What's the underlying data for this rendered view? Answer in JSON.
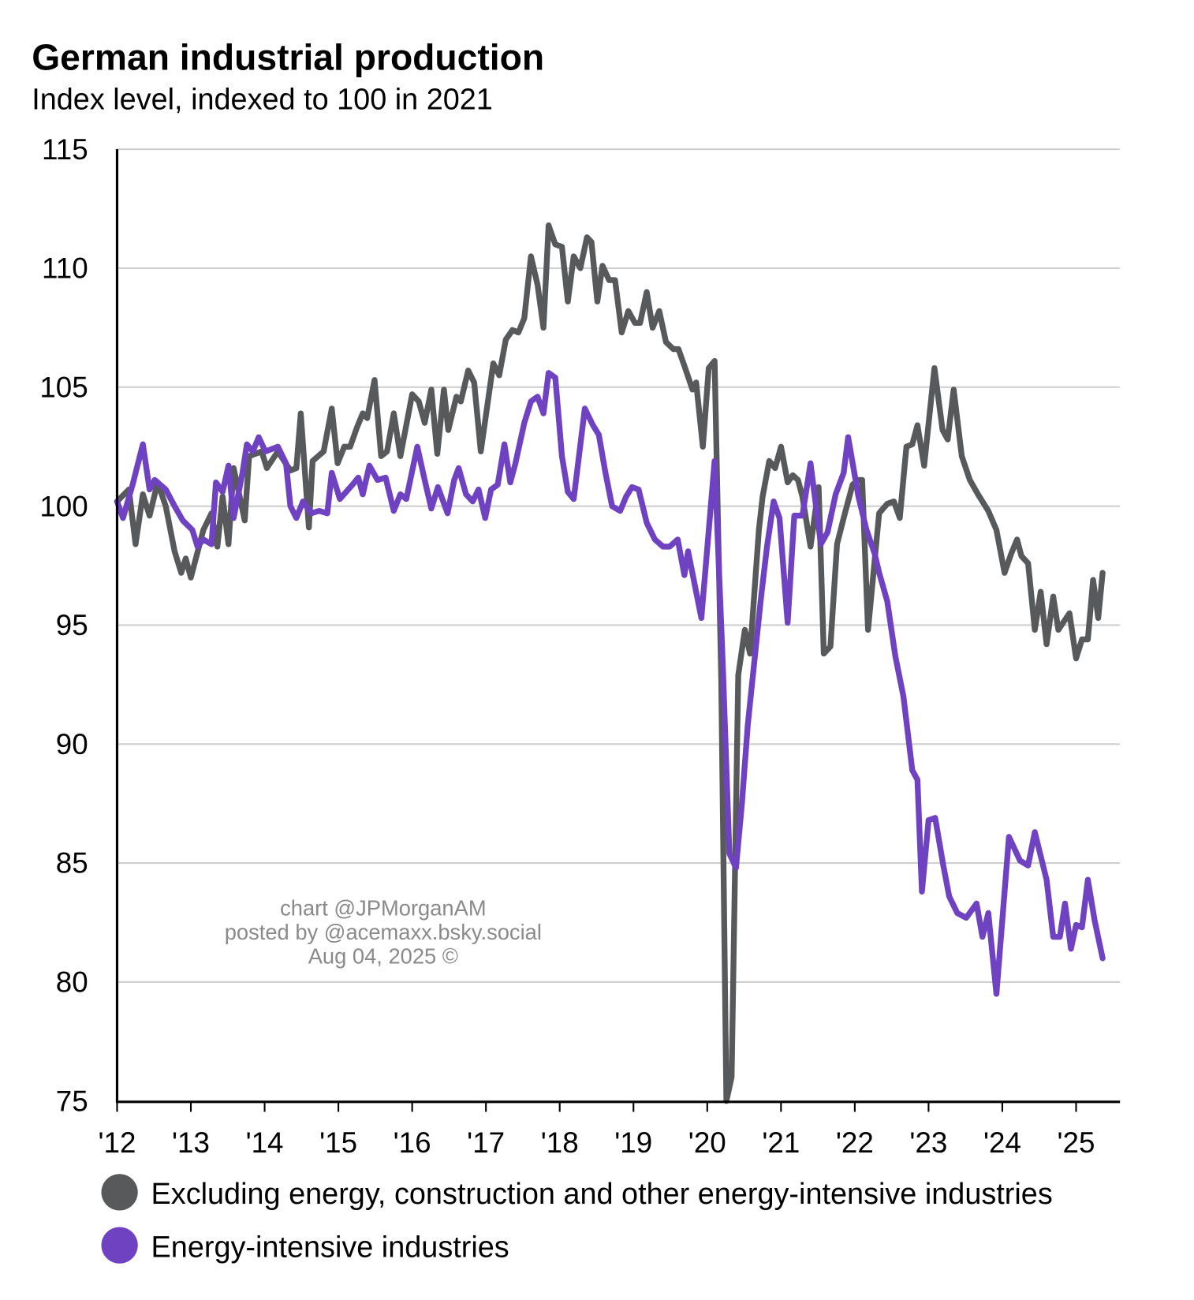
{
  "chart_data": {
    "type": "line",
    "title": "German industrial production",
    "subtitle": "Index level, indexed to 100 in 2021",
    "xlabel": "",
    "ylabel": "",
    "ylim": [
      75,
      115
    ],
    "xlim": [
      2012,
      2025.6
    ],
    "yticks": [
      75,
      80,
      85,
      90,
      95,
      100,
      105,
      110,
      115
    ],
    "xticks": [
      2012,
      2013,
      2014,
      2015,
      2016,
      2017,
      2018,
      2019,
      2020,
      2021,
      2022,
      2023,
      2024,
      2025
    ],
    "xtick_labels": [
      "'12",
      "'13",
      "'14",
      "'15",
      "'16",
      "'17",
      "'18",
      "'19",
      "'20",
      "'21",
      "'22",
      "'23",
      "'24",
      "'25"
    ],
    "grid": true,
    "legend_position": "bottom",
    "series": [
      {
        "name": "Excluding energy, construction and other energy-intensive industries",
        "color": "#58595b",
        "points": [
          [
            2012.0,
            100.2
          ],
          [
            2012.16,
            100.7
          ],
          [
            2012.25,
            98.4
          ],
          [
            2012.35,
            100.5
          ],
          [
            2012.44,
            99.6
          ],
          [
            2012.55,
            101.0
          ],
          [
            2012.66,
            100.0
          ],
          [
            2012.78,
            98.1
          ],
          [
            2012.87,
            97.2
          ],
          [
            2012.93,
            97.8
          ],
          [
            2013.0,
            97.0
          ],
          [
            2013.17,
            99.0
          ],
          [
            2013.28,
            99.7
          ],
          [
            2013.36,
            98.3
          ],
          [
            2013.43,
            100.4
          ],
          [
            2013.51,
            98.4
          ],
          [
            2013.58,
            101.6
          ],
          [
            2013.73,
            99.4
          ],
          [
            2013.79,
            102.1
          ],
          [
            2013.96,
            102.3
          ],
          [
            2014.03,
            101.6
          ],
          [
            2014.18,
            102.3
          ],
          [
            2014.35,
            101.5
          ],
          [
            2014.43,
            101.6
          ],
          [
            2014.49,
            103.9
          ],
          [
            2014.6,
            99.1
          ],
          [
            2014.65,
            101.9
          ],
          [
            2014.8,
            102.3
          ],
          [
            2014.91,
            104.1
          ],
          [
            2014.99,
            101.8
          ],
          [
            2015.08,
            102.5
          ],
          [
            2015.16,
            102.5
          ],
          [
            2015.25,
            103.3
          ],
          [
            2015.33,
            103.9
          ],
          [
            2015.39,
            103.7
          ],
          [
            2015.49,
            105.3
          ],
          [
            2015.58,
            102.1
          ],
          [
            2015.66,
            102.3
          ],
          [
            2015.75,
            103.9
          ],
          [
            2015.84,
            102.1
          ],
          [
            2016.0,
            104.7
          ],
          [
            2016.09,
            104.4
          ],
          [
            2016.17,
            103.5
          ],
          [
            2016.26,
            104.9
          ],
          [
            2016.34,
            102.2
          ],
          [
            2016.43,
            104.9
          ],
          [
            2016.49,
            103.2
          ],
          [
            2016.6,
            104.6
          ],
          [
            2016.66,
            104.4
          ],
          [
            2016.76,
            105.7
          ],
          [
            2016.84,
            105.2
          ],
          [
            2016.93,
            102.3
          ],
          [
            2017.1,
            106.0
          ],
          [
            2017.18,
            105.5
          ],
          [
            2017.27,
            107.0
          ],
          [
            2017.36,
            107.4
          ],
          [
            2017.44,
            107.3
          ],
          [
            2017.52,
            107.9
          ],
          [
            2017.61,
            110.5
          ],
          [
            2017.7,
            109.3
          ],
          [
            2017.78,
            107.5
          ],
          [
            2017.85,
            111.8
          ],
          [
            2017.94,
            111.0
          ],
          [
            2018.03,
            110.9
          ],
          [
            2018.11,
            108.6
          ],
          [
            2018.19,
            110.5
          ],
          [
            2018.28,
            110.0
          ],
          [
            2018.37,
            111.3
          ],
          [
            2018.43,
            111.1
          ],
          [
            2018.51,
            108.6
          ],
          [
            2018.58,
            110.1
          ],
          [
            2018.67,
            109.5
          ],
          [
            2018.75,
            109.5
          ],
          [
            2018.84,
            107.3
          ],
          [
            2018.93,
            108.2
          ],
          [
            2019.02,
            107.7
          ],
          [
            2019.09,
            107.7
          ],
          [
            2019.18,
            109.0
          ],
          [
            2019.26,
            107.5
          ],
          [
            2019.35,
            108.2
          ],
          [
            2019.44,
            106.9
          ],
          [
            2019.54,
            106.6
          ],
          [
            2019.61,
            106.6
          ],
          [
            2019.69,
            105.9
          ],
          [
            2019.8,
            104.9
          ],
          [
            2019.85,
            105.2
          ],
          [
            2019.94,
            102.5
          ],
          [
            2020.02,
            105.8
          ],
          [
            2020.1,
            106.1
          ],
          [
            2020.19,
            92.7
          ],
          [
            2020.26,
            75.0
          ],
          [
            2020.33,
            76.0
          ],
          [
            2020.42,
            92.9
          ],
          [
            2020.51,
            94.8
          ],
          [
            2020.58,
            93.8
          ],
          [
            2020.7,
            99.0
          ],
          [
            2020.75,
            100.4
          ],
          [
            2020.84,
            101.9
          ],
          [
            2020.92,
            101.6
          ],
          [
            2021.0,
            102.5
          ],
          [
            2021.09,
            101.0
          ],
          [
            2021.16,
            101.3
          ],
          [
            2021.23,
            101.1
          ],
          [
            2021.29,
            100.4
          ],
          [
            2021.4,
            98.3
          ],
          [
            2021.51,
            100.8
          ],
          [
            2021.58,
            93.8
          ],
          [
            2021.67,
            94.1
          ],
          [
            2021.76,
            98.4
          ],
          [
            2021.85,
            99.5
          ],
          [
            2021.97,
            100.9
          ],
          [
            2022.05,
            101.1
          ],
          [
            2022.1,
            101.1
          ],
          [
            2022.18,
            94.8
          ],
          [
            2022.33,
            99.7
          ],
          [
            2022.44,
            100.1
          ],
          [
            2022.53,
            100.2
          ],
          [
            2022.61,
            99.5
          ],
          [
            2022.7,
            102.5
          ],
          [
            2022.78,
            102.6
          ],
          [
            2022.85,
            103.4
          ],
          [
            2022.94,
            101.7
          ],
          [
            2023.08,
            105.8
          ],
          [
            2023.19,
            103.2
          ],
          [
            2023.26,
            102.8
          ],
          [
            2023.34,
            104.9
          ],
          [
            2023.45,
            102.1
          ],
          [
            2023.56,
            101.1
          ],
          [
            2023.67,
            100.5
          ],
          [
            2023.81,
            99.8
          ],
          [
            2023.92,
            99.0
          ],
          [
            2024.03,
            97.2
          ],
          [
            2024.12,
            98.0
          ],
          [
            2024.2,
            98.6
          ],
          [
            2024.26,
            97.9
          ],
          [
            2024.35,
            97.6
          ],
          [
            2024.44,
            94.8
          ],
          [
            2024.52,
            96.4
          ],
          [
            2024.6,
            94.2
          ],
          [
            2024.69,
            96.2
          ],
          [
            2024.76,
            94.8
          ],
          [
            2024.91,
            95.5
          ],
          [
            2025.0,
            93.6
          ],
          [
            2025.08,
            94.4
          ],
          [
            2025.16,
            94.4
          ],
          [
            2025.23,
            96.9
          ],
          [
            2025.3,
            95.3
          ],
          [
            2025.36,
            97.2
          ]
        ]
      },
      {
        "name": "Energy-intensive industries",
        "color": "#6f42c1",
        "points": [
          [
            2012.0,
            100.2
          ],
          [
            2012.08,
            99.5
          ],
          [
            2012.21,
            100.9
          ],
          [
            2012.35,
            102.6
          ],
          [
            2012.44,
            100.7
          ],
          [
            2012.51,
            101.1
          ],
          [
            2012.66,
            100.7
          ],
          [
            2012.78,
            100.0
          ],
          [
            2012.89,
            99.4
          ],
          [
            2013.02,
            99.0
          ],
          [
            2013.09,
            98.3
          ],
          [
            2013.17,
            98.6
          ],
          [
            2013.28,
            98.4
          ],
          [
            2013.34,
            101.0
          ],
          [
            2013.43,
            100.6
          ],
          [
            2013.51,
            101.7
          ],
          [
            2013.58,
            99.5
          ],
          [
            2013.7,
            101.4
          ],
          [
            2013.76,
            102.6
          ],
          [
            2013.84,
            102.3
          ],
          [
            2013.92,
            102.9
          ],
          [
            2014.01,
            102.3
          ],
          [
            2014.18,
            102.5
          ],
          [
            2014.29,
            101.8
          ],
          [
            2014.35,
            100.0
          ],
          [
            2014.43,
            99.5
          ],
          [
            2014.52,
            100.2
          ],
          [
            2014.63,
            99.7
          ],
          [
            2014.74,
            99.8
          ],
          [
            2014.85,
            99.7
          ],
          [
            2014.91,
            101.4
          ],
          [
            2015.02,
            100.3
          ],
          [
            2015.19,
            100.9
          ],
          [
            2015.27,
            101.2
          ],
          [
            2015.33,
            100.5
          ],
          [
            2015.42,
            101.7
          ],
          [
            2015.53,
            101.1
          ],
          [
            2015.64,
            101.2
          ],
          [
            2015.75,
            99.8
          ],
          [
            2015.84,
            100.5
          ],
          [
            2015.92,
            100.3
          ],
          [
            2016.07,
            102.5
          ],
          [
            2016.17,
            101.1
          ],
          [
            2016.26,
            99.9
          ],
          [
            2016.35,
            100.8
          ],
          [
            2016.48,
            99.7
          ],
          [
            2016.57,
            101.1
          ],
          [
            2016.63,
            101.6
          ],
          [
            2016.73,
            100.5
          ],
          [
            2016.82,
            100.2
          ],
          [
            2016.9,
            100.7
          ],
          [
            2016.99,
            99.5
          ],
          [
            2017.07,
            100.7
          ],
          [
            2017.16,
            100.9
          ],
          [
            2017.25,
            102.6
          ],
          [
            2017.33,
            101.0
          ],
          [
            2017.4,
            101.8
          ],
          [
            2017.52,
            103.5
          ],
          [
            2017.61,
            104.4
          ],
          [
            2017.7,
            104.6
          ],
          [
            2017.78,
            103.9
          ],
          [
            2017.85,
            105.6
          ],
          [
            2017.94,
            105.4
          ],
          [
            2018.03,
            102.1
          ],
          [
            2018.11,
            100.6
          ],
          [
            2018.19,
            100.3
          ],
          [
            2018.34,
            104.1
          ],
          [
            2018.45,
            103.4
          ],
          [
            2018.53,
            103.0
          ],
          [
            2018.62,
            101.4
          ],
          [
            2018.71,
            100.0
          ],
          [
            2018.82,
            99.8
          ],
          [
            2018.9,
            100.4
          ],
          [
            2018.98,
            100.8
          ],
          [
            2019.07,
            100.7
          ],
          [
            2019.18,
            99.3
          ],
          [
            2019.29,
            98.6
          ],
          [
            2019.4,
            98.3
          ],
          [
            2019.49,
            98.3
          ],
          [
            2019.6,
            98.6
          ],
          [
            2019.69,
            97.1
          ],
          [
            2019.74,
            98.1
          ],
          [
            2019.92,
            95.3
          ],
          [
            2020.1,
            101.9
          ],
          [
            2020.21,
            93.4
          ],
          [
            2020.3,
            85.4
          ],
          [
            2020.39,
            84.8
          ],
          [
            2020.47,
            87.5
          ],
          [
            2020.55,
            90.8
          ],
          [
            2020.66,
            94.1
          ],
          [
            2020.73,
            96.2
          ],
          [
            2020.81,
            98.3
          ],
          [
            2020.9,
            100.2
          ],
          [
            2020.98,
            99.5
          ],
          [
            2021.09,
            95.1
          ],
          [
            2021.18,
            99.6
          ],
          [
            2021.29,
            99.6
          ],
          [
            2021.4,
            101.8
          ],
          [
            2021.54,
            98.4
          ],
          [
            2021.63,
            98.9
          ],
          [
            2021.74,
            100.5
          ],
          [
            2021.85,
            101.4
          ],
          [
            2021.91,
            102.9
          ],
          [
            2022.05,
            100.4
          ],
          [
            2022.16,
            99.0
          ],
          [
            2022.27,
            98.0
          ],
          [
            2022.33,
            97.2
          ],
          [
            2022.44,
            96.0
          ],
          [
            2022.55,
            93.7
          ],
          [
            2022.66,
            92.0
          ],
          [
            2022.78,
            88.9
          ],
          [
            2022.85,
            88.5
          ],
          [
            2022.91,
            83.8
          ],
          [
            2023.0,
            86.8
          ],
          [
            2023.09,
            86.9
          ],
          [
            2023.2,
            84.9
          ],
          [
            2023.28,
            83.6
          ],
          [
            2023.39,
            82.9
          ],
          [
            2023.51,
            82.7
          ],
          [
            2023.65,
            83.3
          ],
          [
            2023.73,
            81.9
          ],
          [
            2023.81,
            82.9
          ],
          [
            2023.92,
            79.5
          ],
          [
            2024.09,
            86.1
          ],
          [
            2024.24,
            85.1
          ],
          [
            2024.35,
            84.9
          ],
          [
            2024.44,
            86.3
          ],
          [
            2024.6,
            84.3
          ],
          [
            2024.69,
            81.9
          ],
          [
            2024.78,
            81.9
          ],
          [
            2024.85,
            83.3
          ],
          [
            2024.93,
            81.4
          ],
          [
            2025.0,
            82.4
          ],
          [
            2025.08,
            82.3
          ],
          [
            2025.16,
            84.3
          ],
          [
            2025.25,
            82.6
          ],
          [
            2025.36,
            81.0
          ]
        ]
      }
    ],
    "annotations": [
      "chart @JPMorganAM",
      "posted by @acemaxx.bsky.social",
      "Aug 04, 2025 ©"
    ]
  }
}
